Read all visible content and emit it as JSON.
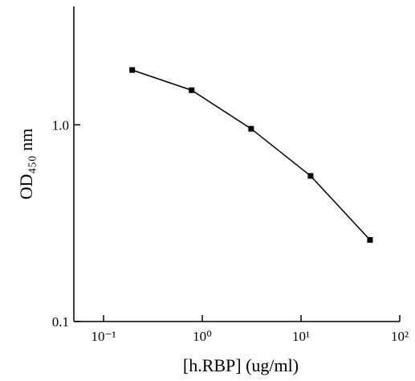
{
  "chart_data": {
    "type": "line",
    "x_label": "[h.RBP] (ug/ml)",
    "y_label": "OD₄₅₀ nm",
    "x_scale": "log",
    "y_scale": "log",
    "x": [
      0.195,
      0.78,
      3.125,
      12.5,
      50
    ],
    "series": [
      {
        "color": "#000000",
        "values": [
          1.9,
          1.5,
          0.955,
          0.55,
          0.26
        ]
      }
    ],
    "xlim": [
      0.05,
      100
    ],
    "ylim": [
      0.1,
      4
    ],
    "xticks": [
      {
        "value": 0.1,
        "label": "10⁻¹"
      },
      {
        "value": 1,
        "label": "10⁰"
      },
      {
        "value": 10,
        "label": "10¹"
      },
      {
        "value": 100,
        "label": "10²"
      }
    ],
    "yticks": [
      0.1,
      {
        "value": 1,
        "label": "1.0"
      }
    ]
  }
}
